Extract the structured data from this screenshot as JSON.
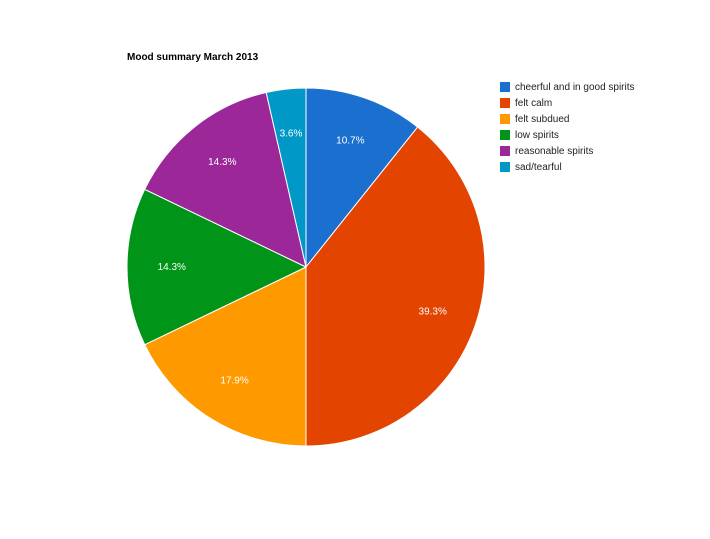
{
  "chart_data": {
    "type": "pie",
    "title": "Mood summary March 2013",
    "categories": [
      "cheerful and in good spirits",
      "felt calm",
      "felt subdued",
      "low spirits",
      "reasonable spirits",
      "sad/tearful"
    ],
    "values": [
      3,
      11,
      5,
      4,
      4,
      1
    ],
    "percent_labels": [
      "10.7%",
      "39.3%",
      "17.9%",
      "14.3%",
      "14.3%",
      "3.6%"
    ],
    "colors": [
      "#1a6fcf",
      "#e34400",
      "#ff9900",
      "#009418",
      "#9b2799",
      "#0099c7"
    ],
    "legend_position": "right",
    "start_angle": "top, clockwise"
  }
}
